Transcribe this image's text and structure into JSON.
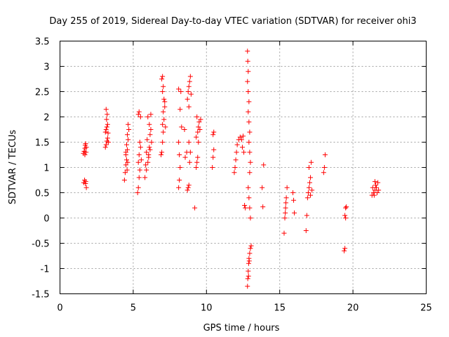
{
  "chart_data": {
    "type": "scatter",
    "title": "Day 255 of 2019, Sidereal Day-to-day VTEC variation (SDTVAR) for receiver ohi3",
    "xlabel": "GPS time / hours",
    "ylabel": "SDTVAR / TECUs",
    "xlim": [
      0,
      25
    ],
    "ylim": [
      -1.5,
      3.5
    ],
    "xticks": [
      "0",
      "5",
      "10",
      "15",
      "20",
      "25"
    ],
    "yticks": [
      "-1.5",
      "-1",
      "-0.5",
      "0",
      "0.5",
      "1",
      "1.5",
      "2",
      "2.5",
      "3",
      "3.5"
    ],
    "grid": true,
    "marker": "plus",
    "color": "#ff0000",
    "series": [
      {
        "name": "SDTVAR",
        "points": [
          [
            1.6,
            1.28
          ],
          [
            1.65,
            1.32
          ],
          [
            1.7,
            1.38
          ],
          [
            1.72,
            1.44
          ],
          [
            1.75,
            1.47
          ],
          [
            1.8,
            1.4
          ],
          [
            1.78,
            1.3
          ],
          [
            1.7,
            1.25
          ],
          [
            1.62,
            0.7
          ],
          [
            1.68,
            0.75
          ],
          [
            1.74,
            0.68
          ],
          [
            1.8,
            0.6
          ],
          [
            1.76,
            0.72
          ],
          [
            3.1,
            1.4
          ],
          [
            3.15,
            1.45
          ],
          [
            3.2,
            1.52
          ],
          [
            3.25,
            1.58
          ],
          [
            3.3,
            1.5
          ],
          [
            3.1,
            1.7
          ],
          [
            3.15,
            1.75
          ],
          [
            3.2,
            1.8
          ],
          [
            3.25,
            1.85
          ],
          [
            3.18,
            1.95
          ],
          [
            3.22,
            2.05
          ],
          [
            3.15,
            2.15
          ],
          [
            3.28,
            1.68
          ],
          [
            4.4,
            0.75
          ],
          [
            4.45,
            0.9
          ],
          [
            4.5,
            1.05
          ],
          [
            4.55,
            1.15
          ],
          [
            4.5,
            1.25
          ],
          [
            4.6,
            1.35
          ],
          [
            4.55,
            1.45
          ],
          [
            4.65,
            1.55
          ],
          [
            4.6,
            1.65
          ],
          [
            4.7,
            1.75
          ],
          [
            4.65,
            1.85
          ],
          [
            4.5,
            1.3
          ],
          [
            4.62,
            1.1
          ],
          [
            4.58,
            0.95
          ],
          [
            5.3,
            0.5
          ],
          [
            5.35,
            0.6
          ],
          [
            5.4,
            0.8
          ],
          [
            5.45,
            0.95
          ],
          [
            5.35,
            1.1
          ],
          [
            5.4,
            1.25
          ],
          [
            5.5,
            1.4
          ],
          [
            5.45,
            1.5
          ],
          [
            5.35,
            2.05
          ],
          [
            5.4,
            2.1
          ],
          [
            5.5,
            2.0
          ],
          [
            5.55,
            1.15
          ],
          [
            5.8,
            0.8
          ],
          [
            5.9,
            0.95
          ],
          [
            6.0,
            1.1
          ],
          [
            6.05,
            1.25
          ],
          [
            6.1,
            1.4
          ],
          [
            5.95,
            1.55
          ],
          [
            6.15,
            1.65
          ],
          [
            6.2,
            1.75
          ],
          [
            6.1,
            1.85
          ],
          [
            6.2,
            2.05
          ],
          [
            6.0,
            2.0
          ],
          [
            5.85,
            1.05
          ],
          [
            6.25,
            1.5
          ],
          [
            6.05,
            1.2
          ],
          [
            5.9,
            1.3
          ],
          [
            6.15,
            1.35
          ],
          [
            6.9,
            1.25
          ],
          [
            6.95,
            1.3
          ],
          [
            7.0,
            1.5
          ],
          [
            7.05,
            1.7
          ],
          [
            7.0,
            1.85
          ],
          [
            7.1,
            1.95
          ],
          [
            7.05,
            2.1
          ],
          [
            7.15,
            2.2
          ],
          [
            7.1,
            2.35
          ],
          [
            7.0,
            2.5
          ],
          [
            7.05,
            2.6
          ],
          [
            6.95,
            2.75
          ],
          [
            7.0,
            2.8
          ],
          [
            7.15,
            2.3
          ],
          [
            7.2,
            1.8
          ],
          [
            8.1,
            0.6
          ],
          [
            8.15,
            0.75
          ],
          [
            8.2,
            1.0
          ],
          [
            8.15,
            1.25
          ],
          [
            8.1,
            1.5
          ],
          [
            8.2,
            2.15
          ],
          [
            8.25,
            2.5
          ],
          [
            8.1,
            2.55
          ],
          [
            8.3,
            1.8
          ],
          [
            8.5,
            1.75
          ],
          [
            8.65,
            1.3
          ],
          [
            8.55,
            1.2
          ],
          [
            8.7,
            0.55
          ],
          [
            8.75,
            0.6
          ],
          [
            8.8,
            0.65
          ],
          [
            8.85,
            1.1
          ],
          [
            8.9,
            1.3
          ],
          [
            8.8,
            1.5
          ],
          [
            8.7,
            2.35
          ],
          [
            8.75,
            2.5
          ],
          [
            8.8,
            2.6
          ],
          [
            8.85,
            2.7
          ],
          [
            8.9,
            2.8
          ],
          [
            8.8,
            2.2
          ],
          [
            8.95,
            2.45
          ],
          [
            9.2,
            0.2
          ],
          [
            9.3,
            1.0
          ],
          [
            9.35,
            1.1
          ],
          [
            9.4,
            1.2
          ],
          [
            9.3,
            1.6
          ],
          [
            9.4,
            1.7
          ],
          [
            9.45,
            1.8
          ],
          [
            9.5,
            1.9
          ],
          [
            9.35,
            2.0
          ],
          [
            9.55,
            1.75
          ],
          [
            9.6,
            1.95
          ],
          [
            9.45,
            1.5
          ],
          [
            10.4,
            1.0
          ],
          [
            10.45,
            1.2
          ],
          [
            10.5,
            1.35
          ],
          [
            10.45,
            1.65
          ],
          [
            10.5,
            1.7
          ],
          [
            11.9,
            0.9
          ],
          [
            11.95,
            1.0
          ],
          [
            12.0,
            1.15
          ],
          [
            12.05,
            1.3
          ],
          [
            12.1,
            1.45
          ],
          [
            12.2,
            1.55
          ],
          [
            12.3,
            1.6
          ],
          [
            12.4,
            1.55
          ],
          [
            12.5,
            1.62
          ],
          [
            12.45,
            1.4
          ],
          [
            12.55,
            1.3
          ],
          [
            12.6,
            0.25
          ],
          [
            12.65,
            0.2
          ],
          [
            12.8,
            3.3
          ],
          [
            12.82,
            3.1
          ],
          [
            12.85,
            2.9
          ],
          [
            12.8,
            2.7
          ],
          [
            12.85,
            2.5
          ],
          [
            12.9,
            2.3
          ],
          [
            12.85,
            2.1
          ],
          [
            12.9,
            1.9
          ],
          [
            12.95,
            1.7
          ],
          [
            12.9,
            1.5
          ],
          [
            12.95,
            1.3
          ],
          [
            13.0,
            1.1
          ],
          [
            12.95,
            0.9
          ],
          [
            12.85,
            0.6
          ],
          [
            12.9,
            0.4
          ],
          [
            12.95,
            0.2
          ],
          [
            13.0,
            0.0
          ],
          [
            12.8,
            -1.35
          ],
          [
            12.82,
            -1.2
          ],
          [
            12.85,
            -1.05
          ],
          [
            12.88,
            -0.9
          ],
          [
            12.9,
            -0.8
          ],
          [
            12.95,
            -0.7
          ],
          [
            13.0,
            -0.6
          ],
          [
            13.05,
            -0.55
          ],
          [
            12.92,
            -0.85
          ],
          [
            12.87,
            -1.15
          ],
          [
            13.8,
            0.6
          ],
          [
            13.85,
            0.22
          ],
          [
            13.9,
            1.05
          ],
          [
            15.3,
            -0.3
          ],
          [
            15.35,
            0.0
          ],
          [
            15.4,
            0.2
          ],
          [
            15.45,
            0.4
          ],
          [
            15.5,
            0.6
          ],
          [
            15.38,
            0.1
          ],
          [
            15.42,
            0.3
          ],
          [
            15.9,
            0.5
          ],
          [
            15.95,
            0.35
          ],
          [
            16.0,
            0.1
          ],
          [
            16.8,
            -0.25
          ],
          [
            16.85,
            0.05
          ],
          [
            16.9,
            0.4
          ],
          [
            16.95,
            0.5
          ],
          [
            17.0,
            0.6
          ],
          [
            17.05,
            0.7
          ],
          [
            17.1,
            0.8
          ],
          [
            17.0,
            1.0
          ],
          [
            17.15,
            1.1
          ],
          [
            17.1,
            0.45
          ],
          [
            17.2,
            0.55
          ],
          [
            18.0,
            0.9
          ],
          [
            18.05,
            1.0
          ],
          [
            18.1,
            1.25
          ],
          [
            19.4,
            -0.65
          ],
          [
            19.45,
            -0.6
          ],
          [
            19.5,
            0.0
          ],
          [
            19.45,
            0.05
          ],
          [
            19.5,
            0.2
          ],
          [
            19.55,
            0.22
          ],
          [
            21.3,
            0.45
          ],
          [
            21.4,
            0.5
          ],
          [
            21.5,
            0.55
          ],
          [
            21.6,
            0.6
          ],
          [
            21.7,
            0.7
          ],
          [
            21.55,
            0.65
          ],
          [
            21.45,
            0.45
          ],
          [
            21.65,
            0.5
          ],
          [
            21.35,
            0.6
          ],
          [
            21.75,
            0.55
          ],
          [
            21.5,
            0.72
          ]
        ]
      }
    ]
  }
}
